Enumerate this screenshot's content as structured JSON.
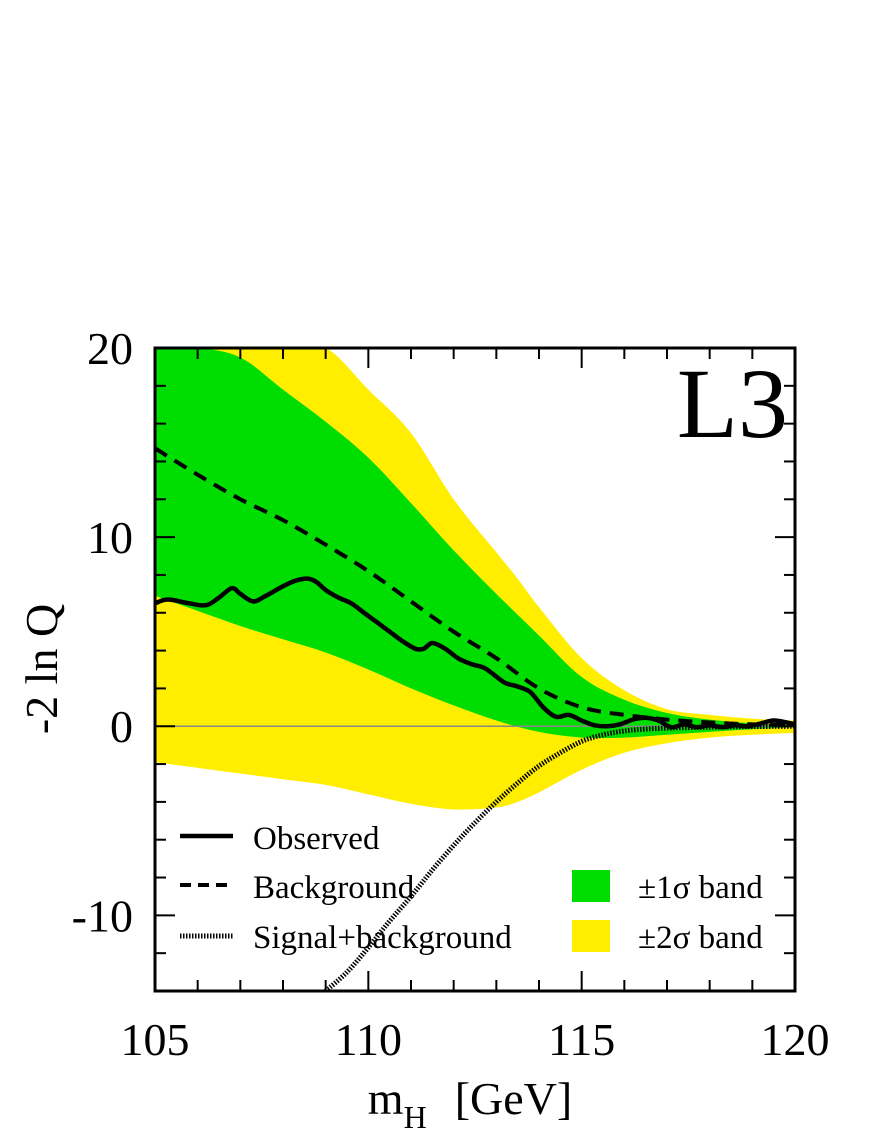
{
  "chart_data": {
    "type": "line",
    "experiment_label": "L3",
    "xlabel": {
      "main": "m",
      "sub": "H",
      "unit": "[GeV]"
    },
    "ylabel": "-2 ln Q",
    "xlim": [
      105,
      120
    ],
    "ylim": [
      -14,
      20
    ],
    "x_ticks": [
      {
        "value": 105,
        "label": "105"
      },
      {
        "value": 110,
        "label": "110"
      },
      {
        "value": 115,
        "label": "115"
      },
      {
        "value": 120,
        "label": "120"
      }
    ],
    "y_ticks": [
      {
        "value": 20,
        "label": "20"
      },
      {
        "value": 10,
        "label": "10"
      },
      {
        "value": 0,
        "label": "0"
      },
      {
        "value": -10,
        "label": "-10"
      }
    ],
    "zero_line": 0,
    "legend": {
      "lines": [
        {
          "key": "observed",
          "label": "Observed",
          "style": "solid"
        },
        {
          "key": "background",
          "label": "Background",
          "style": "dashed"
        },
        {
          "key": "signal_background",
          "label": "Signal+background",
          "style": "dotted"
        }
      ],
      "bands": [
        {
          "key": "band1",
          "label": "±1σ band",
          "color": "#00dd00"
        },
        {
          "key": "band2",
          "label": "±2σ band",
          "color": "#ffee00"
        }
      ]
    },
    "colors": {
      "band1": "#00dd00",
      "band2": "#ffee00",
      "line": "#000000",
      "zero_line": "#888888"
    },
    "series": {
      "observed": {
        "x": [
          105,
          105.3,
          105.8,
          106.2,
          106.5,
          106.8,
          107.0,
          107.3,
          107.6,
          108.0,
          108.3,
          108.6,
          108.8,
          109.0,
          109.3,
          109.6,
          109.9,
          110.2,
          110.5,
          110.8,
          111.1,
          111.3,
          111.5,
          111.8,
          112.1,
          112.4,
          112.7,
          112.9,
          113.2,
          113.5,
          113.8,
          114.1,
          114.4,
          114.7,
          115.0,
          115.3,
          115.6,
          115.9,
          116.2,
          116.5,
          116.8,
          117.1,
          117.4,
          117.7,
          118.0,
          118.3,
          118.6,
          118.9,
          119.2,
          119.5,
          119.8,
          120
        ],
        "y": [
          6.5,
          6.7,
          6.5,
          6.4,
          6.8,
          7.3,
          7.0,
          6.6,
          6.9,
          7.4,
          7.7,
          7.8,
          7.6,
          7.2,
          6.8,
          6.5,
          6.0,
          5.5,
          5.0,
          4.5,
          4.1,
          4.1,
          4.4,
          4.1,
          3.6,
          3.3,
          3.1,
          2.8,
          2.3,
          2.1,
          1.8,
          1.0,
          0.5,
          0.6,
          0.3,
          0.05,
          0.0,
          0.1,
          0.35,
          0.45,
          0.3,
          -0.05,
          0.1,
          -0.05,
          0.05,
          -0.05,
          0.05,
          0.0,
          0.15,
          0.3,
          0.2,
          0.1
        ]
      },
      "background": {
        "x": [
          105,
          106,
          107,
          108,
          109,
          110,
          111,
          112,
          113,
          114,
          115,
          116,
          117,
          118,
          119,
          120
        ],
        "y": [
          14.7,
          13.3,
          12.0,
          10.9,
          9.6,
          8.2,
          6.6,
          5.0,
          3.6,
          2.0,
          1.0,
          0.6,
          0.35,
          0.2,
          0.1,
          0.05
        ]
      },
      "signal_background": {
        "x": [
          109,
          109.5,
          110,
          110.5,
          111,
          111.5,
          112,
          112.5,
          113,
          113.5,
          114,
          114.5,
          115,
          115.5,
          116,
          116.5,
          117,
          117.5,
          118,
          118.5,
          119,
          119.5,
          120
        ],
        "y": [
          -14,
          -13.0,
          -11.7,
          -10.3,
          -9.0,
          -7.6,
          -6.3,
          -5.1,
          -4.0,
          -3.0,
          -2.1,
          -1.4,
          -0.8,
          -0.45,
          -0.25,
          -0.15,
          -0.1,
          -0.07,
          -0.05,
          -0.03,
          -0.02,
          -0.01,
          0.0
        ]
      },
      "band1": {
        "x": [
          105,
          106,
          107,
          108,
          109,
          110,
          111,
          112,
          113,
          114,
          115,
          116,
          117,
          118,
          119,
          120
        ],
        "upper": [
          20.0,
          20.0,
          19.5,
          17.8,
          16.1,
          14.2,
          11.8,
          9.3,
          7.0,
          4.8,
          2.6,
          1.4,
          0.7,
          0.35,
          0.15,
          0.05
        ],
        "lower": [
          6.9,
          6.1,
          5.3,
          4.6,
          3.9,
          3.0,
          2.0,
          1.1,
          0.3,
          -0.3,
          -0.6,
          -0.6,
          -0.45,
          -0.3,
          -0.15,
          -0.05
        ]
      },
      "band2": {
        "x": [
          105,
          106,
          107,
          108,
          109,
          110,
          111,
          112,
          113,
          113.5,
          114,
          115,
          116,
          117,
          118,
          119,
          120
        ],
        "upper": [
          20.0,
          20.0,
          20.0,
          20.0,
          20.0,
          17.8,
          15.5,
          12.0,
          9.2,
          7.8,
          6.3,
          3.6,
          1.9,
          0.9,
          0.6,
          0.4,
          0.3
        ],
        "lower": [
          -1.9,
          -2.2,
          -2.5,
          -2.8,
          -3.1,
          -3.6,
          -4.1,
          -4.4,
          -4.3,
          -4.0,
          -3.5,
          -2.3,
          -1.4,
          -0.9,
          -0.6,
          -0.45,
          -0.35
        ]
      }
    }
  }
}
